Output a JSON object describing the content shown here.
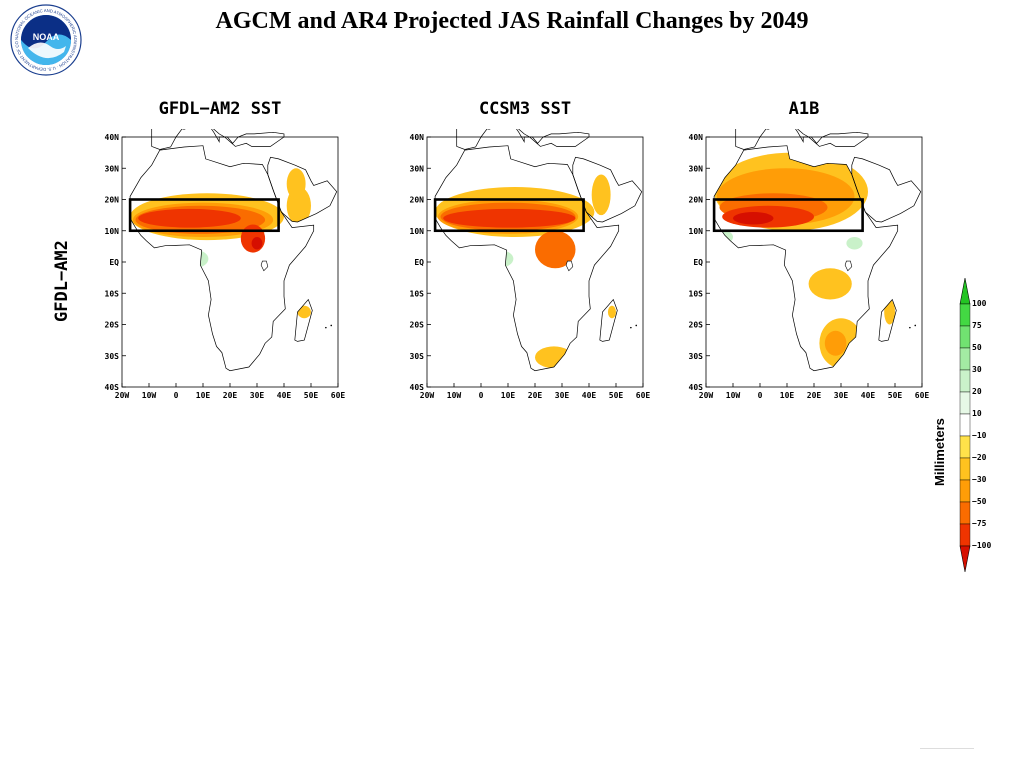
{
  "slide": {
    "title": "AGCM and AR4 Projected JAS Rainfall Changes by 2049",
    "row_label": "GFDL−AM2",
    "logo": {
      "icon": "noaa-logo",
      "center_text": "NOAA",
      "ring_text": "NATIONAL OCEANIC AND ATMOSPHERIC ADMINISTRATION · U.S. DEPARTMENT OF COMMERCE"
    }
  },
  "map_axes": {
    "lat_ticks": [
      "40N",
      "30N",
      "20N",
      "10N",
      "EQ",
      "10S",
      "20S",
      "30S",
      "40S"
    ],
    "lon_ticks": [
      "20W",
      "10W",
      "0",
      "10E",
      "20E",
      "30E",
      "40E",
      "50E",
      "60E"
    ],
    "lat_range": [
      -40,
      40
    ],
    "lon_range": [
      -20,
      60
    ],
    "box_region": {
      "lon": [
        -17,
        38
      ],
      "lat": [
        10,
        20
      ]
    }
  },
  "panels": [
    {
      "title": "GFDL−AM2 SST",
      "anomalies": [
        {
          "level": -20,
          "lon": [
            -17,
            40
          ],
          "lat": [
            7,
            22
          ]
        },
        {
          "level": -30,
          "lon": [
            -16,
            36
          ],
          "lat": [
            8,
            19
          ]
        },
        {
          "level": -50,
          "lon": [
            -15,
            33
          ],
          "lat": [
            9,
            18
          ]
        },
        {
          "level": -75,
          "lon": [
            -14,
            24
          ],
          "lat": [
            11,
            17
          ]
        },
        {
          "level": -75,
          "lon": [
            24,
            33
          ],
          "lat": [
            3,
            12
          ]
        },
        {
          "level": -100,
          "lon": [
            28,
            32
          ],
          "lat": [
            4,
            8
          ]
        },
        {
          "level": -20,
          "lon": [
            41,
            50
          ],
          "lat": [
            12,
            24
          ]
        },
        {
          "level": -20,
          "lon": [
            41,
            48
          ],
          "lat": [
            20,
            30
          ]
        },
        {
          "level": -20,
          "lon": [
            45,
            50
          ],
          "lat": [
            -18,
            -14
          ]
        },
        {
          "level": 20,
          "lon": [
            1,
            12
          ],
          "lat": [
            -2,
            4
          ]
        }
      ]
    },
    {
      "title": "CCSM3 SST",
      "anomalies": [
        {
          "level": -20,
          "lon": [
            -17,
            42
          ],
          "lat": [
            8,
            24
          ]
        },
        {
          "level": -30,
          "lon": [
            -16,
            36
          ],
          "lat": [
            9,
            20
          ]
        },
        {
          "level": -50,
          "lon": [
            -15,
            35
          ],
          "lat": [
            10,
            19
          ]
        },
        {
          "level": -75,
          "lon": [
            -14,
            35
          ],
          "lat": [
            11,
            17
          ]
        },
        {
          "level": -50,
          "lon": [
            20,
            35
          ],
          "lat": [
            -2,
            10
          ]
        },
        {
          "level": -20,
          "lon": [
            41,
            48
          ],
          "lat": [
            15,
            28
          ]
        },
        {
          "level": -20,
          "lon": [
            20,
            34
          ],
          "lat": [
            -34,
            -27
          ]
        },
        {
          "level": -20,
          "lon": [
            47,
            50
          ],
          "lat": [
            -18,
            -14
          ]
        },
        {
          "level": 20,
          "lon": [
            0,
            12
          ],
          "lat": [
            -2,
            4
          ]
        }
      ]
    },
    {
      "title": "A1B",
      "anomalies": [
        {
          "level": -20,
          "lon": [
            -17,
            40
          ],
          "lat": [
            10,
            35
          ]
        },
        {
          "level": -30,
          "lon": [
            -16,
            35
          ],
          "lat": [
            12,
            30
          ]
        },
        {
          "level": -50,
          "lon": [
            -15,
            25
          ],
          "lat": [
            13,
            22
          ]
        },
        {
          "level": -75,
          "lon": [
            -14,
            20
          ],
          "lat": [
            11,
            18
          ]
        },
        {
          "level": -100,
          "lon": [
            -10,
            5
          ],
          "lat": [
            12,
            16
          ]
        },
        {
          "level": -20,
          "lon": [
            18,
            34
          ],
          "lat": [
            -12,
            -2
          ]
        },
        {
          "level": -20,
          "lon": [
            22,
            38
          ],
          "lat": [
            -34,
            -18
          ]
        },
        {
          "level": -30,
          "lon": [
            24,
            32
          ],
          "lat": [
            -30,
            -22
          ]
        },
        {
          "level": -20,
          "lon": [
            46,
            50
          ],
          "lat": [
            -20,
            -12
          ]
        },
        {
          "level": 20,
          "lon": [
            32,
            38
          ],
          "lat": [
            4,
            8
          ]
        },
        {
          "level": 20,
          "lon": [
            -16,
            -10
          ],
          "lat": [
            6,
            10
          ]
        }
      ]
    }
  ],
  "colorbar": {
    "label": "Millimeters",
    "ticks": [
      "100",
      "75",
      "50",
      "30",
      "20",
      "10",
      "−10",
      "−20",
      "−30",
      "−50",
      "−75",
      "−100"
    ],
    "levels": [
      {
        "color": "#23c423"
      },
      {
        "color": "#43d843"
      },
      {
        "color": "#71e271"
      },
      {
        "color": "#a3eba3"
      },
      {
        "color": "#caf2ca"
      },
      {
        "color": "#e6f8e6"
      },
      {
        "color": "#ffffff"
      },
      {
        "color": "#ffe24a"
      },
      {
        "color": "#ffc21f"
      },
      {
        "color": "#ff9d07"
      },
      {
        "color": "#fa6c00"
      },
      {
        "color": "#ef3400"
      },
      {
        "color": "#d60f00"
      }
    ],
    "anomaly_colors": {
      "20": "#c9f1c9",
      "-20": "#ffc21f",
      "-30": "#ff9d07",
      "-50": "#fa6c00",
      "-75": "#ef3400",
      "-100": "#d60f00"
    }
  }
}
